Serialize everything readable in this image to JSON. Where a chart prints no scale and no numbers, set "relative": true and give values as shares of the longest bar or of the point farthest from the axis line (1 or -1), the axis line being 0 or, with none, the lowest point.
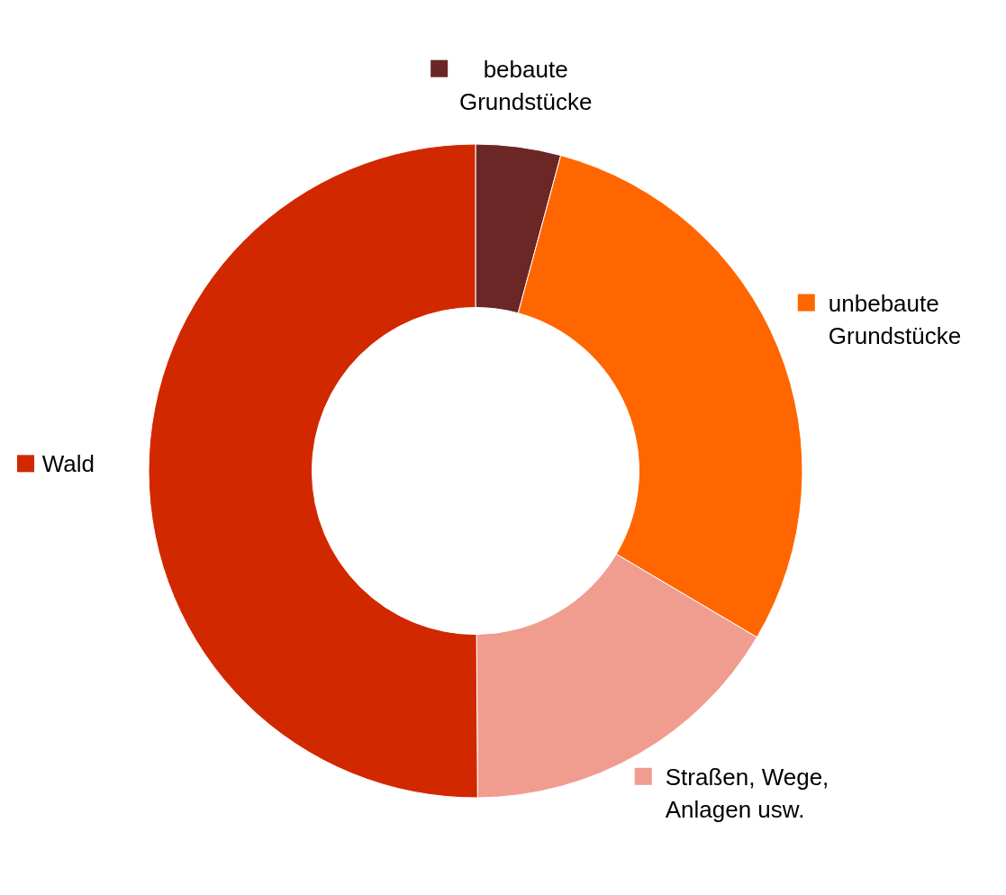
{
  "chart_data": {
    "type": "donut",
    "relative": true,
    "categories": [
      "bebaute Grundstücke",
      "unbebaute Grundstücke",
      "Straßen, Wege, Anlagen usw.",
      "Wald"
    ],
    "values": [
      4.2,
      29.3,
      16.4,
      50.1
    ],
    "colors": [
      "#6b2626",
      "#ff6600",
      "#f09c8f",
      "#d22800"
    ],
    "legend": "top right"
  }
}
